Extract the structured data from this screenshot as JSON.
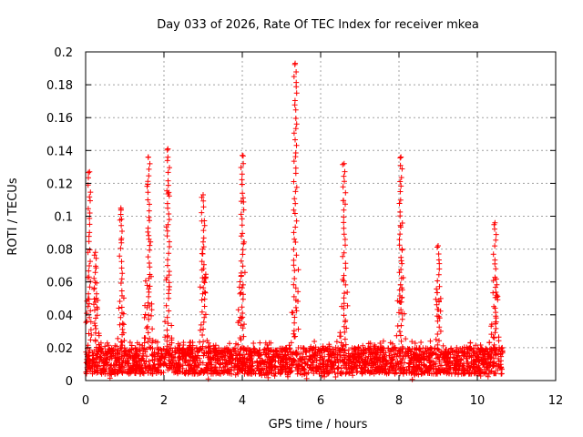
{
  "chart_data": {
    "type": "scatter",
    "title": "Day 033 of 2026, Rate Of TEC Index for receiver mkea",
    "xlabel": "GPS time / hours",
    "ylabel": "ROTI / TECUs",
    "xlim": [
      0,
      12
    ],
    "ylim": [
      0,
      0.2
    ],
    "x_ticks": [
      "0",
      "2",
      "4",
      "6",
      "8",
      "10",
      "12"
    ],
    "y_ticks": [
      "0",
      "0.02",
      "0.04",
      "0.06",
      "0.08",
      "0.1",
      "0.12",
      "0.14",
      "0.16",
      "0.18",
      "0.2"
    ],
    "grid": true,
    "marker": "plus",
    "color": "#ff0000",
    "x_data_range": [
      0,
      10.65
    ],
    "peaks": [
      {
        "x": 0.1,
        "y": 0.127
      },
      {
        "x": 0.25,
        "y": 0.078
      },
      {
        "x": 0.9,
        "y": 0.105
      },
      {
        "x": 1.6,
        "y": 0.136
      },
      {
        "x": 2.1,
        "y": 0.141
      },
      {
        "x": 3.0,
        "y": 0.113
      },
      {
        "x": 4.0,
        "y": 0.137
      },
      {
        "x": 5.35,
        "y": 0.193
      },
      {
        "x": 6.6,
        "y": 0.132
      },
      {
        "x": 8.05,
        "y": 0.136
      },
      {
        "x": 9.0,
        "y": 0.082
      },
      {
        "x": 10.45,
        "y": 0.096
      }
    ]
  }
}
